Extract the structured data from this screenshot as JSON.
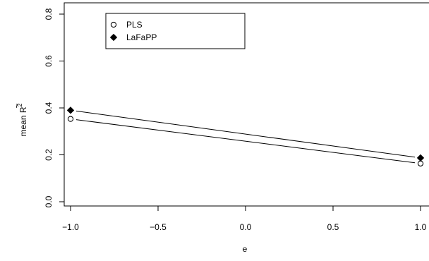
{
  "chart_data": {
    "type": "line",
    "xlabel": "e",
    "ylabel_prefix": "mean ",
    "ylabel_symbol": "R",
    "ylabel_tilde": "~",
    "ylabel_superscript": "2",
    "xlim": [
      -1.0,
      1.0
    ],
    "ylim": [
      0.0,
      0.8
    ],
    "x_ticks": [
      -1.0,
      -0.5,
      0.0,
      0.5,
      1.0
    ],
    "x_tick_labels": [
      "−1.0",
      "−0.5",
      "0.0",
      "0.5",
      "1.0"
    ],
    "y_ticks": [
      0.0,
      0.2,
      0.4,
      0.6,
      0.8
    ],
    "y_tick_labels": [
      "0.0",
      "0.2",
      "0.4",
      "0.6",
      "0.8"
    ],
    "legend_position": "top-left",
    "grid": false,
    "series": [
      {
        "name": "PLS",
        "marker": "open-circle",
        "x": [
          -1.0,
          1.0
        ],
        "y": [
          0.353,
          0.163
        ]
      },
      {
        "name": "LaFaPP",
        "marker": "filled-diamond",
        "x": [
          -1.0,
          1.0
        ],
        "y": [
          0.39,
          0.187
        ]
      }
    ]
  }
}
